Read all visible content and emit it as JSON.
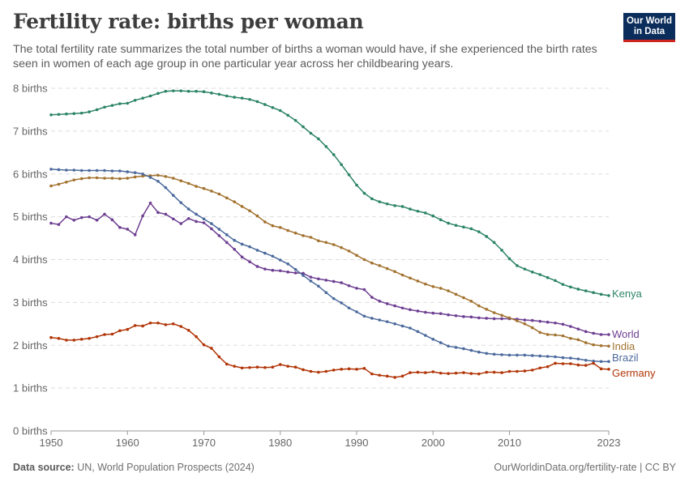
{
  "header": {
    "title": "Fertility rate: births per woman",
    "subtitle": "The total fertility rate summarizes the total number of births a woman would have, if she experienced the birth rates seen in women of each age group in one particular year across her childbearing years."
  },
  "logo": {
    "line1": "Our World",
    "line2": "in Data"
  },
  "footer": {
    "source_label": "Data source:",
    "source_text": "UN, World Population Prospects (2024)",
    "link": "OurWorldinData.org/fertility-rate | CC BY"
  },
  "chart_data": {
    "type": "line",
    "title": "Fertility rate: births per woman",
    "x": [
      1950,
      1951,
      1952,
      1953,
      1954,
      1955,
      1956,
      1957,
      1958,
      1959,
      1960,
      1961,
      1962,
      1963,
      1964,
      1965,
      1966,
      1967,
      1968,
      1969,
      1970,
      1971,
      1972,
      1973,
      1974,
      1975,
      1976,
      1977,
      1978,
      1979,
      1980,
      1981,
      1982,
      1983,
      1984,
      1985,
      1986,
      1987,
      1988,
      1989,
      1990,
      1991,
      1992,
      1993,
      1994,
      1995,
      1996,
      1997,
      1998,
      1999,
      2000,
      2001,
      2002,
      2003,
      2004,
      2005,
      2006,
      2007,
      2008,
      2009,
      2010,
      2011,
      2012,
      2013,
      2014,
      2015,
      2016,
      2017,
      2018,
      2019,
      2020,
      2021,
      2022,
      2023
    ],
    "xlim": [
      1950,
      2023
    ],
    "ylim": [
      0,
      8
    ],
    "x_ticks": [
      "1950",
      "1960",
      "1970",
      "1980",
      "1990",
      "2000",
      "2010",
      "2023"
    ],
    "x_tick_values": [
      1950,
      1960,
      1970,
      1980,
      1990,
      2000,
      2010,
      2023
    ],
    "y_ticks": [
      "0 births",
      "1 births",
      "2 births",
      "3 births",
      "4 births",
      "5 births",
      "6 births",
      "7 births",
      "8 births"
    ],
    "y_tick_values": [
      0,
      1,
      2,
      3,
      4,
      5,
      6,
      7,
      8
    ],
    "grid": true,
    "legend": "end-of-line labels",
    "series": [
      {
        "name": "Kenya",
        "color": "#2c8465",
        "values": [
          7.38,
          7.39,
          7.4,
          7.41,
          7.42,
          7.45,
          7.5,
          7.56,
          7.6,
          7.64,
          7.65,
          7.72,
          7.77,
          7.82,
          7.88,
          7.93,
          7.94,
          7.94,
          7.93,
          7.93,
          7.92,
          7.89,
          7.86,
          7.82,
          7.79,
          7.77,
          7.74,
          7.69,
          7.62,
          7.55,
          7.48,
          7.37,
          7.25,
          7.1,
          6.95,
          6.82,
          6.64,
          6.45,
          6.22,
          5.98,
          5.74,
          5.55,
          5.42,
          5.35,
          5.3,
          5.26,
          5.24,
          5.18,
          5.13,
          5.09,
          5.02,
          4.93,
          4.85,
          4.8,
          4.76,
          4.72,
          4.65,
          4.54,
          4.4,
          4.22,
          4.02,
          3.86,
          3.78,
          3.71,
          3.65,
          3.58,
          3.51,
          3.42,
          3.36,
          3.31,
          3.27,
          3.23,
          3.19,
          3.16
        ]
      },
      {
        "name": "World",
        "color": "#6d3e91",
        "values": [
          4.85,
          4.82,
          5.0,
          4.92,
          4.98,
          5.0,
          4.92,
          5.06,
          4.93,
          4.75,
          4.71,
          4.58,
          5.02,
          5.32,
          5.1,
          5.06,
          4.95,
          4.84,
          4.96,
          4.89,
          4.86,
          4.72,
          4.56,
          4.4,
          4.24,
          4.06,
          3.95,
          3.84,
          3.78,
          3.75,
          3.74,
          3.71,
          3.69,
          3.68,
          3.59,
          3.55,
          3.52,
          3.49,
          3.46,
          3.39,
          3.33,
          3.3,
          3.12,
          3.03,
          2.97,
          2.92,
          2.87,
          2.83,
          2.8,
          2.77,
          2.75,
          2.74,
          2.71,
          2.69,
          2.67,
          2.66,
          2.64,
          2.63,
          2.62,
          2.62,
          2.62,
          2.61,
          2.59,
          2.58,
          2.56,
          2.54,
          2.52,
          2.49,
          2.44,
          2.38,
          2.32,
          2.28,
          2.25,
          2.25
        ]
      },
      {
        "name": "India",
        "color": "#a2722f",
        "values": [
          5.72,
          5.76,
          5.81,
          5.86,
          5.89,
          5.91,
          5.91,
          5.9,
          5.9,
          5.89,
          5.9,
          5.93,
          5.95,
          5.96,
          5.97,
          5.94,
          5.9,
          5.84,
          5.78,
          5.71,
          5.66,
          5.6,
          5.53,
          5.44,
          5.35,
          5.24,
          5.14,
          5.02,
          4.88,
          4.79,
          4.75,
          4.68,
          4.62,
          4.56,
          4.52,
          4.44,
          4.4,
          4.35,
          4.28,
          4.2,
          4.1,
          4.0,
          3.92,
          3.86,
          3.79,
          3.72,
          3.64,
          3.57,
          3.5,
          3.43,
          3.37,
          3.33,
          3.27,
          3.19,
          3.11,
          3.03,
          2.92,
          2.84,
          2.76,
          2.7,
          2.64,
          2.57,
          2.5,
          2.41,
          2.3,
          2.25,
          2.24,
          2.22,
          2.16,
          2.13,
          2.06,
          2.01,
          1.99,
          1.98
        ]
      },
      {
        "name": "Brazil",
        "color": "#4c6a9c",
        "values": [
          6.11,
          6.1,
          6.09,
          6.09,
          6.08,
          6.08,
          6.08,
          6.08,
          6.07,
          6.07,
          6.05,
          6.03,
          6.0,
          5.92,
          5.83,
          5.68,
          5.5,
          5.33,
          5.18,
          5.06,
          4.95,
          4.84,
          4.71,
          4.58,
          4.45,
          4.36,
          4.3,
          4.22,
          4.15,
          4.08,
          3.99,
          3.9,
          3.77,
          3.63,
          3.5,
          3.38,
          3.23,
          3.09,
          2.99,
          2.87,
          2.78,
          2.68,
          2.63,
          2.59,
          2.55,
          2.5,
          2.45,
          2.4,
          2.32,
          2.23,
          2.14,
          2.06,
          1.98,
          1.95,
          1.92,
          1.88,
          1.84,
          1.81,
          1.79,
          1.78,
          1.77,
          1.77,
          1.77,
          1.76,
          1.75,
          1.74,
          1.73,
          1.71,
          1.7,
          1.68,
          1.65,
          1.63,
          1.62,
          1.62
        ]
      },
      {
        "name": "Germany",
        "color": "#b13507",
        "values": [
          2.18,
          2.16,
          2.12,
          2.12,
          2.14,
          2.16,
          2.2,
          2.25,
          2.26,
          2.34,
          2.37,
          2.46,
          2.45,
          2.52,
          2.52,
          2.48,
          2.5,
          2.44,
          2.35,
          2.2,
          2.01,
          1.93,
          1.73,
          1.56,
          1.51,
          1.47,
          1.48,
          1.49,
          1.48,
          1.49,
          1.55,
          1.51,
          1.49,
          1.43,
          1.39,
          1.37,
          1.39,
          1.42,
          1.44,
          1.45,
          1.44,
          1.46,
          1.33,
          1.3,
          1.28,
          1.25,
          1.28,
          1.36,
          1.37,
          1.36,
          1.38,
          1.35,
          1.34,
          1.35,
          1.36,
          1.34,
          1.33,
          1.37,
          1.37,
          1.36,
          1.39,
          1.39,
          1.4,
          1.42,
          1.47,
          1.5,
          1.58,
          1.57,
          1.57,
          1.54,
          1.53,
          1.58,
          1.45,
          1.44
        ]
      }
    ]
  }
}
